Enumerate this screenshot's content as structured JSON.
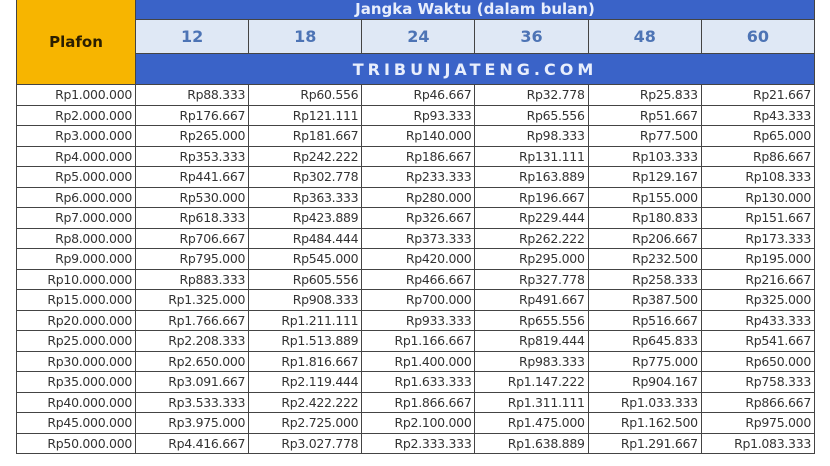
{
  "header": {
    "plafon_label": "Plafon",
    "term_label": "Jangka Waktu (dalam bulan)",
    "terms": [
      "12",
      "18",
      "24",
      "36",
      "48",
      "60"
    ],
    "watermark": "TRIBUNJATENG.COM"
  },
  "colors": {
    "header_blue": "#3a63c8",
    "plafon_yellow": "#f7b500",
    "term_bg": "#dfe8f5",
    "term_text": "#4d74b5"
  },
  "rows": [
    [
      "Rp1.000.000",
      "Rp88.333",
      "Rp60.556",
      "Rp46.667",
      "Rp32.778",
      "Rp25.833",
      "Rp21.667"
    ],
    [
      "Rp2.000.000",
      "Rp176.667",
      "Rp121.111",
      "Rp93.333",
      "Rp65.556",
      "Rp51.667",
      "Rp43.333"
    ],
    [
      "Rp3.000.000",
      "Rp265.000",
      "Rp181.667",
      "Rp140.000",
      "Rp98.333",
      "Rp77.500",
      "Rp65.000"
    ],
    [
      "Rp4.000.000",
      "Rp353.333",
      "Rp242.222",
      "Rp186.667",
      "Rp131.111",
      "Rp103.333",
      "Rp86.667"
    ],
    [
      "Rp5.000.000",
      "Rp441.667",
      "Rp302.778",
      "Rp233.333",
      "Rp163.889",
      "Rp129.167",
      "Rp108.333"
    ],
    [
      "Rp6.000.000",
      "Rp530.000",
      "Rp363.333",
      "Rp280.000",
      "Rp196.667",
      "Rp155.000",
      "Rp130.000"
    ],
    [
      "Rp7.000.000",
      "Rp618.333",
      "Rp423.889",
      "Rp326.667",
      "Rp229.444",
      "Rp180.833",
      "Rp151.667"
    ],
    [
      "Rp8.000.000",
      "Rp706.667",
      "Rp484.444",
      "Rp373.333",
      "Rp262.222",
      "Rp206.667",
      "Rp173.333"
    ],
    [
      "Rp9.000.000",
      "Rp795.000",
      "Rp545.000",
      "Rp420.000",
      "Rp295.000",
      "Rp232.500",
      "Rp195.000"
    ],
    [
      "Rp10.000.000",
      "Rp883.333",
      "Rp605.556",
      "Rp466.667",
      "Rp327.778",
      "Rp258.333",
      "Rp216.667"
    ],
    [
      "Rp15.000.000",
      "Rp1.325.000",
      "Rp908.333",
      "Rp700.000",
      "Rp491.667",
      "Rp387.500",
      "Rp325.000"
    ],
    [
      "Rp20.000.000",
      "Rp1.766.667",
      "Rp1.211.111",
      "Rp933.333",
      "Rp655.556",
      "Rp516.667",
      "Rp433.333"
    ],
    [
      "Rp25.000.000",
      "Rp2.208.333",
      "Rp1.513.889",
      "Rp1.166.667",
      "Rp819.444",
      "Rp645.833",
      "Rp541.667"
    ],
    [
      "Rp30.000.000",
      "Rp2.650.000",
      "Rp1.816.667",
      "Rp1.400.000",
      "Rp983.333",
      "Rp775.000",
      "Rp650.000"
    ],
    [
      "Rp35.000.000",
      "Rp3.091.667",
      "Rp2.119.444",
      "Rp1.633.333",
      "Rp1.147.222",
      "Rp904.167",
      "Rp758.333"
    ],
    [
      "Rp40.000.000",
      "Rp3.533.333",
      "Rp2.422.222",
      "Rp1.866.667",
      "Rp1.311.111",
      "Rp1.033.333",
      "Rp866.667"
    ],
    [
      "Rp45.000.000",
      "Rp3.975.000",
      "Rp2.725.000",
      "Rp2.100.000",
      "Rp1.475.000",
      "Rp1.162.500",
      "Rp975.000"
    ],
    [
      "Rp50.000.000",
      "Rp4.416.667",
      "Rp3.027.778",
      "Rp2.333.333",
      "Rp1.638.889",
      "Rp1.291.667",
      "Rp1.083.333"
    ]
  ]
}
